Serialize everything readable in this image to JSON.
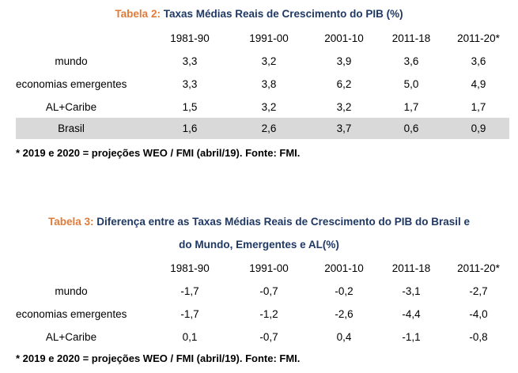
{
  "table2": {
    "label": "Tabela 2:",
    "title": "Taxas Médias Reais de Crescimento do PIB (%)",
    "headers": [
      "1981-90",
      "1991-00",
      "2001-10",
      "2011-18",
      "2011-20*"
    ],
    "rows": [
      {
        "name": "mundo",
        "values": [
          "3,3",
          "3,2",
          "3,9",
          "3,6",
          "3,6"
        ]
      },
      {
        "name": "economias emergentes",
        "values": [
          "3,3",
          "3,8",
          "6,2",
          "5,0",
          "4,9"
        ]
      },
      {
        "name": "AL+Caribe",
        "values": [
          "1,5",
          "3,2",
          "3,2",
          "1,7",
          "1,7"
        ]
      },
      {
        "name": "Brasil",
        "values": [
          "1,6",
          "2,6",
          "3,7",
          "0,6",
          "0,9"
        ]
      }
    ],
    "note": "* 2019 e 2020 = projeções WEO / FMI (abril/19). Fonte: FMI.",
    "highlight_color": "#d9d9d9"
  },
  "table3": {
    "label": "Tabela 3:",
    "title_line1": "Diferença entre as Taxas Médias Reais de Crescimento do PIB do Brasil e",
    "title_line2": "do Mundo, Emergentes e AL(%)",
    "headers": [
      "1981-90",
      "1991-00",
      "2001-10",
      "2011-18",
      "2011-20*"
    ],
    "rows": [
      {
        "name": "mundo",
        "values": [
          "-1,7",
          "-0,7",
          "-0,2",
          "-3,1",
          "-2,7"
        ]
      },
      {
        "name": "economias emergentes",
        "values": [
          "-1,7",
          "-1,2",
          "-2,6",
          "-4,4",
          "-4,0"
        ]
      },
      {
        "name": "AL+Caribe",
        "values": [
          "0,1",
          "-0,7",
          "0,4",
          "-1,1",
          "-0,8"
        ]
      }
    ],
    "note": "* 2019 e 2020 = projeções WEO / FMI (abril/19). Fonte: FMI."
  },
  "colors": {
    "label": "#e07b39",
    "title": "#1f3864"
  }
}
